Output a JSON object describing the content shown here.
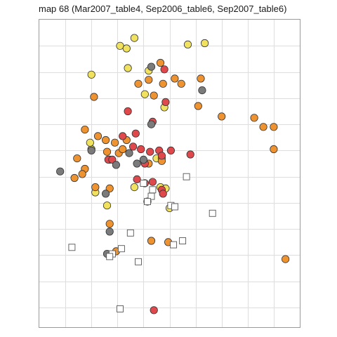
{
  "chart_data": {
    "type": "scatter",
    "title": "map 68 (Mar2007_table4, Sep2006_table6, Sep2007_table6)",
    "xlabel": "",
    "ylabel": "",
    "xlim": [
      0,
      20
    ],
    "ylim": [
      0,
      23.5
    ],
    "x_grid": [
      2,
      4,
      6,
      8,
      10,
      12,
      14,
      16,
      18
    ],
    "y_grid": [
      1.5,
      3.5,
      5.5,
      7.5,
      9.5,
      11.5,
      13.5,
      15.5,
      17.5,
      19.5,
      21.5
    ],
    "grid": true,
    "legend": "none",
    "colors": {
      "yellow": "#f0e25e",
      "orange": "#ef9331",
      "red": "#e0494c",
      "gray": "#7b7b7b",
      "open": "#ffffff"
    },
    "series": [
      {
        "color": "yellow",
        "shape": "circle",
        "points": [
          [
            6.2,
            21.5
          ],
          [
            6.7,
            21.3
          ],
          [
            7.3,
            22.1
          ],
          [
            11.4,
            21.6
          ],
          [
            12.7,
            21.7
          ],
          [
            6.8,
            19.8
          ],
          [
            8.4,
            19.6
          ],
          [
            4.0,
            19.3
          ],
          [
            8.1,
            17.8
          ],
          [
            9.6,
            16.8
          ],
          [
            4.0,
            13.6
          ],
          [
            3.9,
            14.1
          ],
          [
            9.0,
            12.9
          ],
          [
            9.4,
            12.9
          ],
          [
            7.3,
            10.7
          ],
          [
            9.3,
            10.7
          ],
          [
            9.7,
            10.6
          ],
          [
            4.3,
            10.3
          ],
          [
            10.0,
            9.1
          ],
          [
            5.2,
            9.3
          ]
        ]
      },
      {
        "color": "orange",
        "shape": "circle",
        "points": [
          [
            9.3,
            20.2
          ],
          [
            10.4,
            19.0
          ],
          [
            9.5,
            18.6
          ],
          [
            8.4,
            18.9
          ],
          [
            10.9,
            18.6
          ],
          [
            12.4,
            19.0
          ],
          [
            7.6,
            18.6
          ],
          [
            8.8,
            17.7
          ],
          [
            4.2,
            17.6
          ],
          [
            12.2,
            16.9
          ],
          [
            14.0,
            16.1
          ],
          [
            16.5,
            16.0
          ],
          [
            3.5,
            15.1
          ],
          [
            4.5,
            14.6
          ],
          [
            5.1,
            14.3
          ],
          [
            5.8,
            14.1
          ],
          [
            6.7,
            14.3
          ],
          [
            5.2,
            13.4
          ],
          [
            6.1,
            13.3
          ],
          [
            6.4,
            13.6
          ],
          [
            2.9,
            12.9
          ],
          [
            5.4,
            12.8
          ],
          [
            9.4,
            12.7
          ],
          [
            8.4,
            12.5
          ],
          [
            3.5,
            12.1
          ],
          [
            3.3,
            11.7
          ],
          [
            2.7,
            11.4
          ],
          [
            4.3,
            10.7
          ],
          [
            5.4,
            10.6
          ],
          [
            8.3,
            9.6
          ],
          [
            5.4,
            7.9
          ],
          [
            8.6,
            6.6
          ],
          [
            9.9,
            6.5
          ],
          [
            5.9,
            5.8
          ],
          [
            17.2,
            15.3
          ],
          [
            18.0,
            15.3
          ],
          [
            18.0,
            13.6
          ],
          [
            18.9,
            5.2
          ]
        ]
      },
      {
        "color": "red",
        "shape": "circle",
        "points": [
          [
            9.6,
            19.7
          ],
          [
            9.7,
            17.2
          ],
          [
            8.7,
            15.7
          ],
          [
            6.8,
            16.5
          ],
          [
            7.4,
            14.8
          ],
          [
            6.4,
            14.6
          ],
          [
            7.2,
            13.8
          ],
          [
            7.8,
            13.6
          ],
          [
            8.5,
            13.4
          ],
          [
            9.2,
            13.5
          ],
          [
            10.1,
            13.5
          ],
          [
            9.4,
            13.1
          ],
          [
            11.6,
            13.2
          ],
          [
            5.3,
            12.8
          ],
          [
            5.6,
            12.8
          ],
          [
            8.1,
            12.5
          ],
          [
            7.5,
            11.3
          ],
          [
            8.1,
            11.0
          ],
          [
            9.4,
            10.5
          ],
          [
            9.5,
            10.2
          ],
          [
            8.7,
            11.1
          ],
          [
            8.8,
            1.3
          ]
        ]
      },
      {
        "color": "gray",
        "shape": "circle",
        "points": [
          [
            8.6,
            19.9
          ],
          [
            12.5,
            18.1
          ],
          [
            8.6,
            15.5
          ],
          [
            6.9,
            13.3
          ],
          [
            4.0,
            13.5
          ],
          [
            8.0,
            12.8
          ],
          [
            7.5,
            12.5
          ],
          [
            5.9,
            12.4
          ],
          [
            5.1,
            10.2
          ],
          [
            1.6,
            11.9
          ],
          [
            5.4,
            7.3
          ],
          [
            5.2,
            5.6
          ]
        ]
      },
      {
        "color": "open",
        "shape": "square",
        "points": [
          [
            11.3,
            11.5
          ],
          [
            8.0,
            11.0
          ],
          [
            8.7,
            10.5
          ],
          [
            8.6,
            10.0
          ],
          [
            8.3,
            9.6
          ],
          [
            10.1,
            9.3
          ],
          [
            10.4,
            9.2
          ],
          [
            13.3,
            8.7
          ],
          [
            7.0,
            7.2
          ],
          [
            10.3,
            6.3
          ],
          [
            11.0,
            6.6
          ],
          [
            2.5,
            6.1
          ],
          [
            6.3,
            6.0
          ],
          [
            5.6,
            5.6
          ],
          [
            5.4,
            5.4
          ],
          [
            7.6,
            5.0
          ],
          [
            6.2,
            1.4
          ]
        ]
      }
    ]
  }
}
